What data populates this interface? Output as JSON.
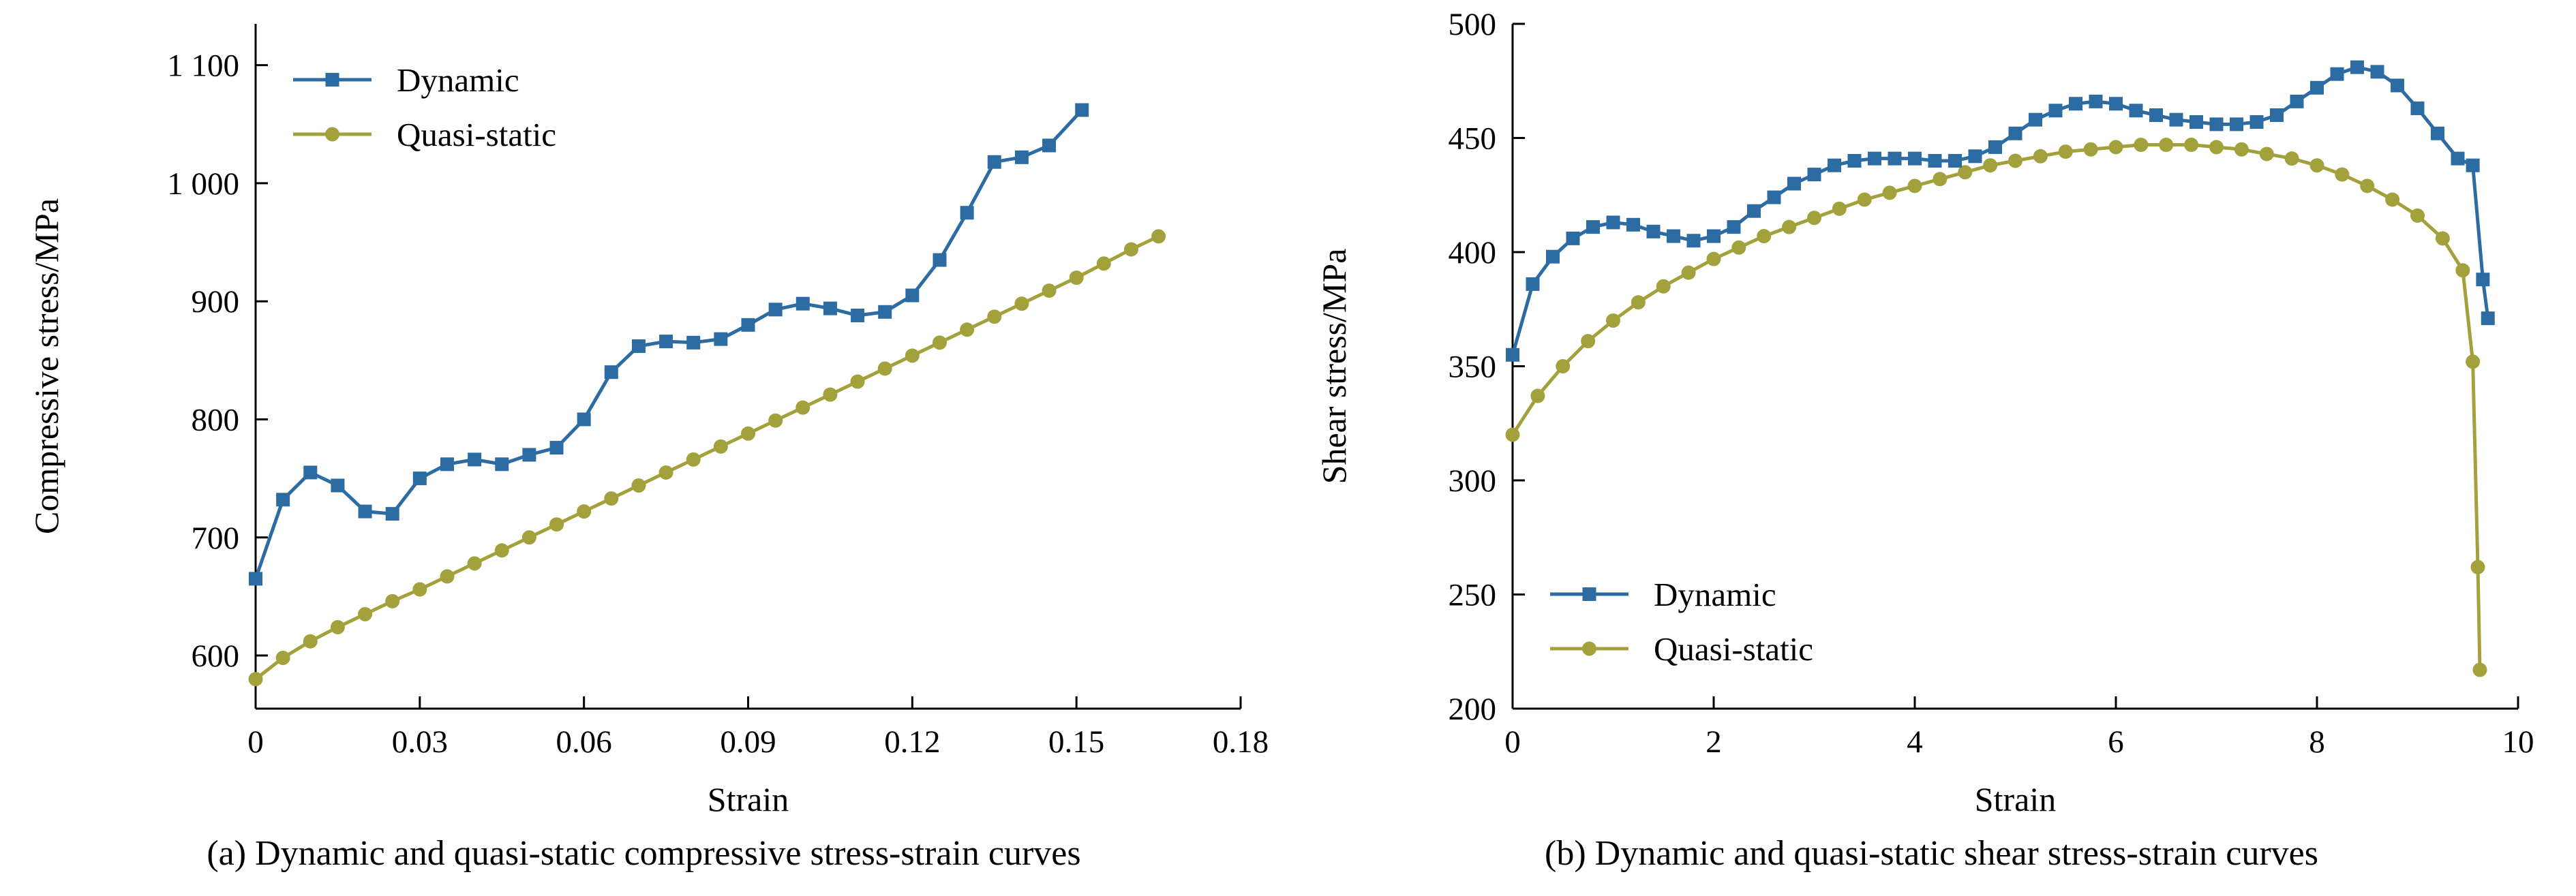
{
  "page": {
    "background": "#ffffff"
  },
  "colors": {
    "axis": "#000000",
    "dynamic": "#2d6ca3",
    "quasi_static": "#a3a13c"
  },
  "chart_data": [
    {
      "type": "line",
      "caption": "(a) Dynamic and quasi-static compressive stress-strain curves",
      "xlabel": "Strain",
      "ylabel": "Compressive stress/MPa",
      "xlim": [
        0,
        0.18
      ],
      "ylim": [
        555,
        1135
      ],
      "grid": false,
      "legend_position": "top-left",
      "xticks": [
        {
          "v": 0,
          "label": "0"
        },
        {
          "v": 0.03,
          "label": "0.03"
        },
        {
          "v": 0.06,
          "label": "0.06"
        },
        {
          "v": 0.09,
          "label": "0.09"
        },
        {
          "v": 0.12,
          "label": "0.12"
        },
        {
          "v": 0.15,
          "label": "0.15"
        },
        {
          "v": 0.18,
          "label": "0.18"
        }
      ],
      "yticks": [
        {
          "v": 600,
          "label": "600"
        },
        {
          "v": 700,
          "label": "700"
        },
        {
          "v": 800,
          "label": "800"
        },
        {
          "v": 900,
          "label": "900"
        },
        {
          "v": 1000,
          "label": "1 000"
        },
        {
          "v": 1100,
          "label": "1 100"
        }
      ],
      "series": [
        {
          "name": "Dynamic",
          "color": "#2d6ca3",
          "marker": "square",
          "x": [
            0,
            0.005,
            0.01,
            0.015,
            0.02,
            0.025,
            0.03,
            0.035,
            0.04,
            0.045,
            0.05,
            0.055,
            0.06,
            0.065,
            0.07,
            0.075,
            0.08,
            0.085,
            0.09,
            0.095,
            0.1,
            0.105,
            0.11,
            0.115,
            0.12,
            0.125,
            0.13,
            0.135,
            0.14,
            0.145,
            0.151
          ],
          "y": [
            665,
            732,
            755,
            744,
            722,
            720,
            750,
            762,
            766,
            762,
            770,
            776,
            800,
            840,
            862,
            866,
            865,
            868,
            880,
            893,
            898,
            894,
            888,
            891,
            905,
            935,
            975,
            1018,
            1022,
            1032,
            1062
          ]
        },
        {
          "name": "Quasi-static",
          "color": "#a3a13c",
          "marker": "circle",
          "x": [
            0,
            0.005,
            0.01,
            0.015,
            0.02,
            0.025,
            0.03,
            0.035,
            0.04,
            0.045,
            0.05,
            0.055,
            0.06,
            0.065,
            0.07,
            0.075,
            0.08,
            0.085,
            0.09,
            0.095,
            0.1,
            0.105,
            0.11,
            0.115,
            0.12,
            0.125,
            0.13,
            0.135,
            0.14,
            0.145,
            0.15,
            0.155,
            0.16,
            0.165
          ],
          "y": [
            580,
            598,
            612,
            624,
            635,
            646,
            656,
            667,
            678,
            689,
            700,
            711,
            722,
            733,
            744,
            755,
            766,
            777,
            788,
            799,
            810,
            821,
            832,
            843,
            854,
            865,
            876,
            887,
            898,
            909,
            920,
            932,
            944,
            955
          ]
        }
      ]
    },
    {
      "type": "line",
      "caption": "(b) Dynamic and quasi-static shear stress-strain curves",
      "xlabel": "Strain",
      "ylabel": "Shear stress/MPa",
      "xlim": [
        0,
        10
      ],
      "ylim": [
        200,
        500
      ],
      "grid": false,
      "legend_position": "bottom-left",
      "xticks": [
        {
          "v": 0,
          "label": "0"
        },
        {
          "v": 2,
          "label": "2"
        },
        {
          "v": 4,
          "label": "4"
        },
        {
          "v": 6,
          "label": "6"
        },
        {
          "v": 8,
          "label": "8"
        },
        {
          "v": 10,
          "label": "10"
        }
      ],
      "yticks": [
        {
          "v": 200,
          "label": "200"
        },
        {
          "v": 250,
          "label": "250"
        },
        {
          "v": 300,
          "label": "300"
        },
        {
          "v": 350,
          "label": "350"
        },
        {
          "v": 400,
          "label": "400"
        },
        {
          "v": 450,
          "label": "450"
        },
        {
          "v": 500,
          "label": "500"
        }
      ],
      "series": [
        {
          "name": "Dynamic",
          "color": "#2d6ca3",
          "marker": "square",
          "x": [
            0,
            0.2,
            0.4,
            0.6,
            0.8,
            1.0,
            1.2,
            1.4,
            1.6,
            1.8,
            2.0,
            2.2,
            2.4,
            2.6,
            2.8,
            3.0,
            3.2,
            3.4,
            3.6,
            3.8,
            4.0,
            4.2,
            4.4,
            4.6,
            4.8,
            5.0,
            5.2,
            5.4,
            5.6,
            5.8,
            6.0,
            6.2,
            6.4,
            6.6,
            6.8,
            7.0,
            7.2,
            7.4,
            7.6,
            7.8,
            8.0,
            8.2,
            8.4,
            8.6,
            8.8,
            9.0,
            9.2,
            9.4,
            9.55,
            9.65,
            9.7
          ],
          "y": [
            355,
            386,
            398,
            406,
            411,
            413,
            412,
            409,
            407,
            405,
            407,
            411,
            418,
            424,
            430,
            434,
            438,
            440,
            441,
            441,
            441,
            440,
            440,
            442,
            446,
            452,
            458,
            462,
            465,
            466,
            465,
            462,
            460,
            458,
            457,
            456,
            456,
            457,
            460,
            466,
            472,
            478,
            481,
            479,
            473,
            463,
            452,
            441,
            438,
            388,
            371
          ]
        },
        {
          "name": "Quasi-static",
          "color": "#a3a13c",
          "marker": "circle",
          "x": [
            0,
            0.25,
            0.5,
            0.75,
            1.0,
            1.25,
            1.5,
            1.75,
            2.0,
            2.25,
            2.5,
            2.75,
            3.0,
            3.25,
            3.5,
            3.75,
            4.0,
            4.25,
            4.5,
            4.75,
            5.0,
            5.25,
            5.5,
            5.75,
            6.0,
            6.25,
            6.5,
            6.75,
            7.0,
            7.25,
            7.5,
            7.75,
            8.0,
            8.25,
            8.5,
            8.75,
            9.0,
            9.25,
            9.45,
            9.55,
            9.6,
            9.62
          ],
          "y": [
            320,
            337,
            350,
            361,
            370,
            378,
            385,
            391,
            397,
            402,
            407,
            411,
            415,
            419,
            423,
            426,
            429,
            432,
            435,
            438,
            440,
            442,
            444,
            445,
            446,
            447,
            447,
            447,
            446,
            445,
            443,
            441,
            438,
            434,
            429,
            423,
            416,
            406,
            392,
            352,
            262,
            217
          ]
        }
      ]
    }
  ]
}
